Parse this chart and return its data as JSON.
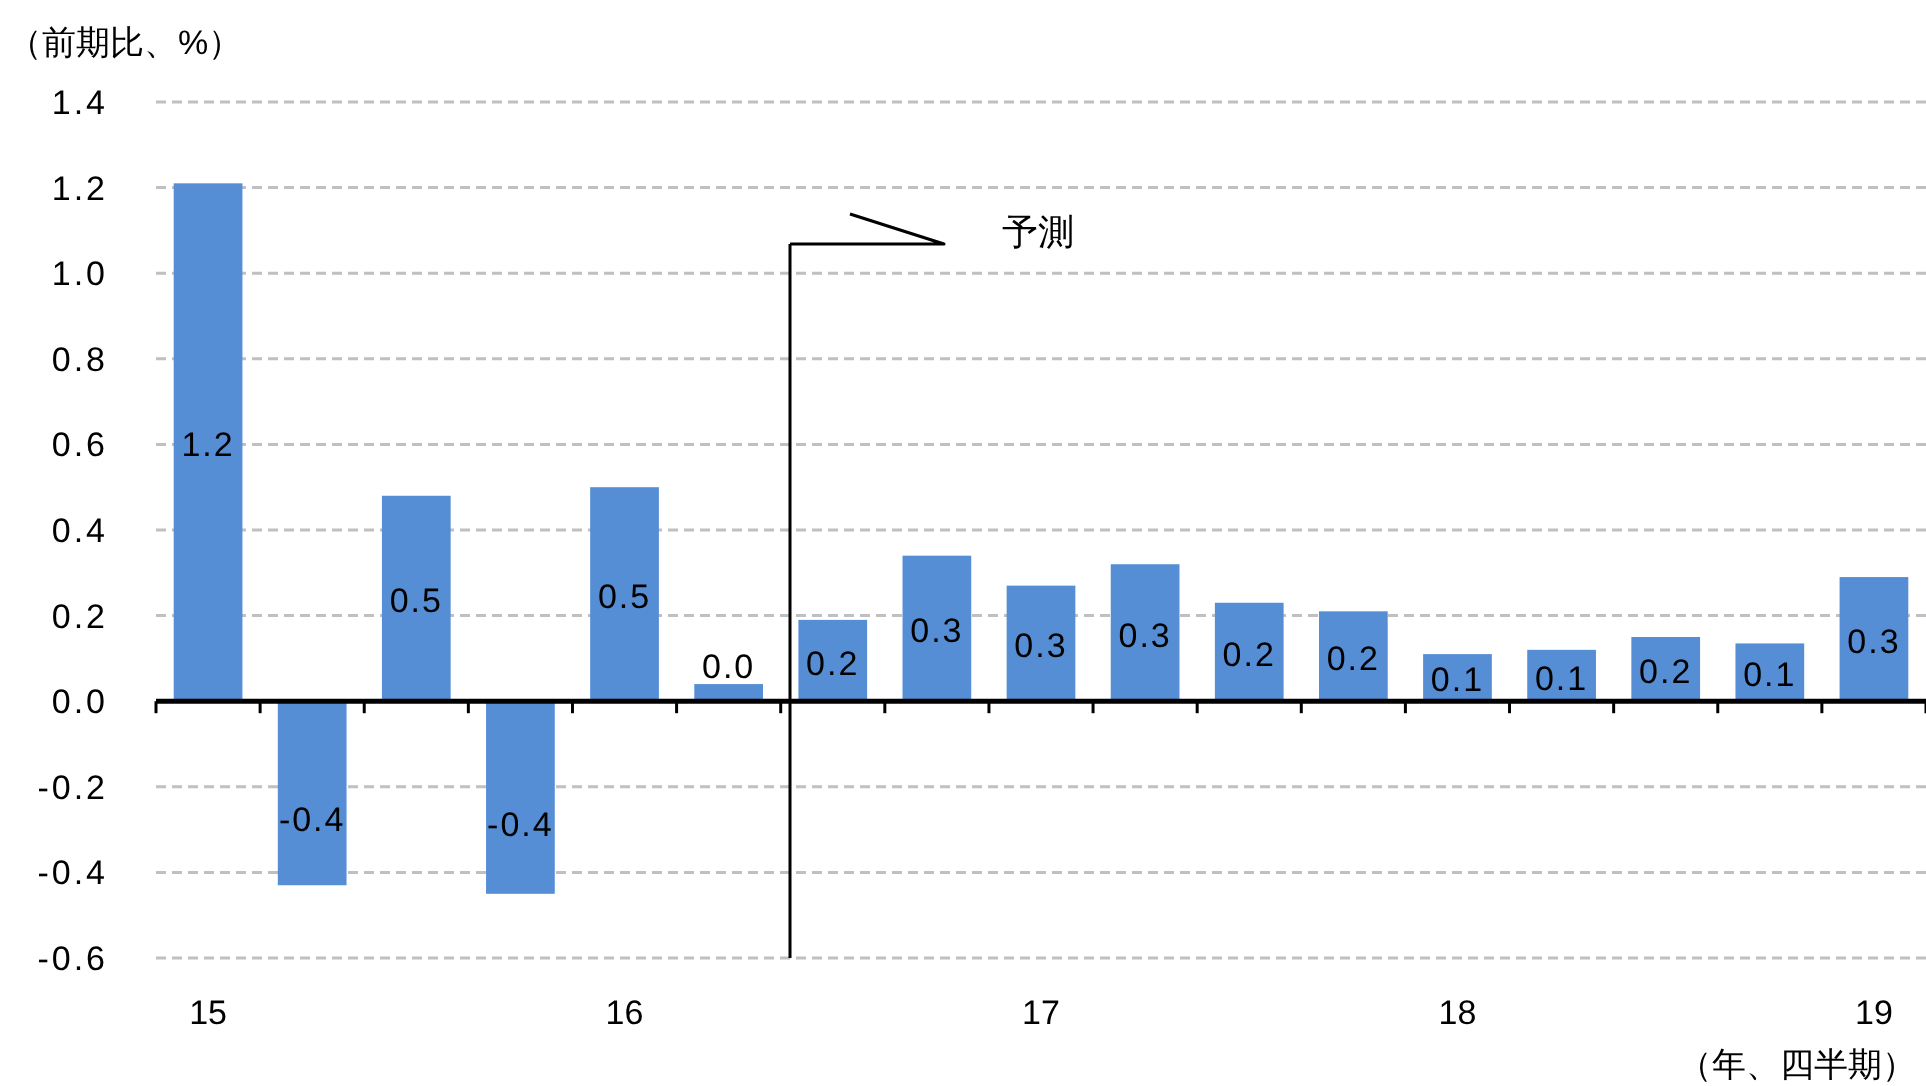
{
  "chart_data": {
    "type": "bar",
    "ylabel": "（前期比、%）",
    "xlabel": "（年、四半期）",
    "categories": [
      "15",
      null,
      null,
      null,
      "16",
      null,
      null,
      null,
      "17",
      null,
      null,
      null,
      "18",
      null,
      null,
      null,
      "19"
    ],
    "values": [
      1.21,
      -0.43,
      0.48,
      -0.45,
      0.5,
      0.04,
      0.19,
      0.34,
      0.27,
      0.32,
      0.23,
      0.21,
      0.11,
      0.12,
      0.15,
      0.135,
      0.29
    ],
    "value_labels": [
      "1.2",
      "-0.4",
      "0.5",
      "-0.4",
      "0.5",
      "0.0",
      "0.2",
      "0.3",
      "0.3",
      "0.3",
      "0.2",
      "0.2",
      "0.1",
      "0.1",
      "0.2",
      "0.1",
      "0.3"
    ],
    "color": "#558ed5",
    "ylim": [
      -0.6,
      1.4
    ],
    "yticks": [
      {
        "value": -0.6,
        "label": "-0.6"
      },
      {
        "value": -0.4,
        "label": "-0.4"
      },
      {
        "value": -0.2,
        "label": "-0.2"
      },
      {
        "value": 0,
        "label": "0.0"
      },
      {
        "value": 0.2,
        "label": "0.2"
      },
      {
        "value": 0.4,
        "label": "0.4"
      },
      {
        "value": 0.6,
        "label": "0.6"
      },
      {
        "value": 0.8,
        "label": "0.8"
      },
      {
        "value": 1,
        "label": "1.0"
      },
      {
        "value": 1.2,
        "label": "1.2"
      },
      {
        "value": 1.4,
        "label": "1.4"
      }
    ],
    "grid": "y",
    "annotations": [
      "予測"
    ]
  }
}
